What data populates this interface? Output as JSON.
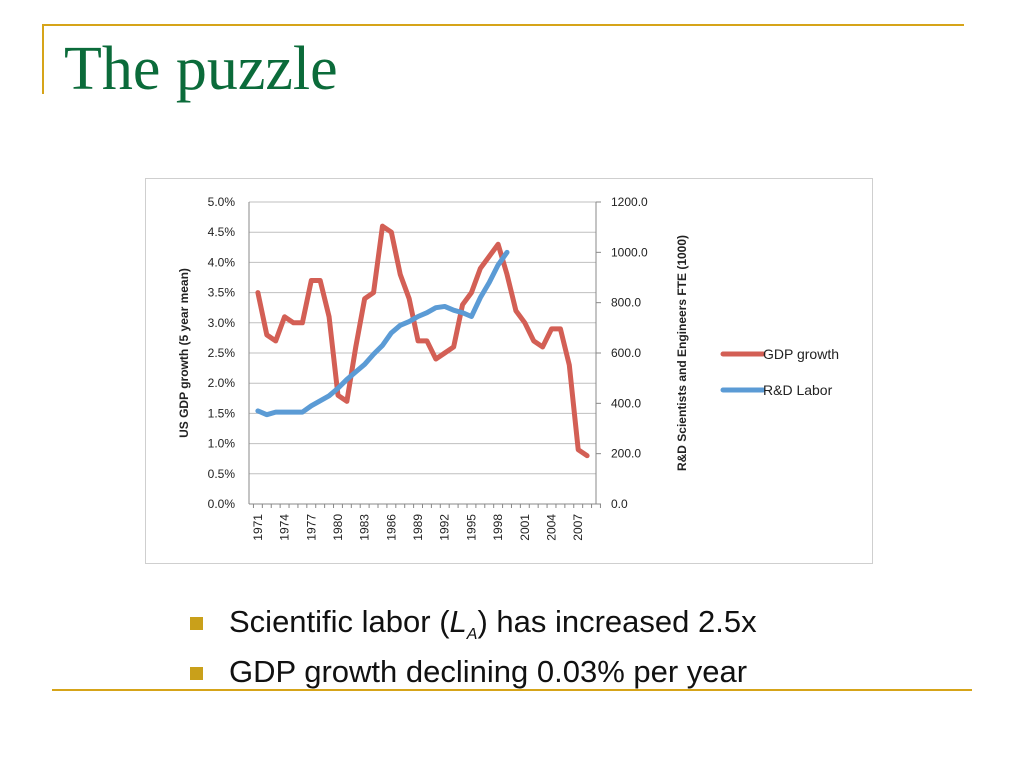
{
  "slide": {
    "title": "The puzzle",
    "bullets": [
      {
        "pre": "Scientific labor (",
        "sym": "L",
        "sub": "A",
        "post": ") has increased 2.5x"
      },
      {
        "text": "GDP growth declining 0.03% per year"
      }
    ]
  },
  "colors": {
    "accent": "#d6a419",
    "title": "#0b6b3a",
    "gdp": "#d35f55",
    "rd": "#5b9bd5",
    "grid": "#bfbfbf"
  },
  "chart_data": {
    "type": "line",
    "ylabel": "US GDP growth (5 year mean)",
    "y2label": "R&D Scientists and Engineers FTE (1000)",
    "ylim": [
      0,
      5
    ],
    "y2lim": [
      0,
      1200
    ],
    "yticks": [
      "0.0%",
      "0.5%",
      "1.0%",
      "1.5%",
      "2.0%",
      "2.5%",
      "3.0%",
      "3.5%",
      "4.0%",
      "4.5%",
      "5.0%"
    ],
    "y2ticks": [
      "0.0",
      "200.0",
      "400.0",
      "600.0",
      "800.0",
      "1000.0",
      "1200.0"
    ],
    "xticks": [
      "1971",
      "1974",
      "1977",
      "1980",
      "1983",
      "1986",
      "1989",
      "1992",
      "1995",
      "1998",
      "2001",
      "2004",
      "2007"
    ],
    "grid": true,
    "legend_position": "right",
    "series": [
      {
        "name": "GDP growth",
        "axis": "left",
        "x": [
          1971,
          1972,
          1973,
          1974,
          1975,
          1976,
          1977,
          1978,
          1979,
          1980,
          1981,
          1982,
          1983,
          1984,
          1985,
          1986,
          1987,
          1988,
          1989,
          1990,
          1991,
          1992,
          1993,
          1994,
          1995,
          1996,
          1997,
          1998,
          1999,
          2000,
          2001,
          2002,
          2003,
          2004,
          2005,
          2006,
          2007,
          2008
        ],
        "values": [
          3.5,
          2.8,
          2.7,
          3.1,
          3.0,
          3.0,
          3.7,
          3.7,
          3.1,
          1.8,
          1.7,
          2.6,
          3.4,
          3.5,
          4.6,
          4.5,
          3.8,
          3.4,
          2.7,
          2.7,
          2.4,
          2.5,
          2.6,
          3.3,
          3.5,
          3.9,
          4.1,
          4.3,
          3.8,
          3.2,
          3.0,
          2.7,
          2.6,
          2.9,
          2.9,
          2.3,
          0.9,
          0.8
        ]
      },
      {
        "name": "R&D Labor",
        "axis": "right",
        "x": [
          1971,
          1972,
          1973,
          1974,
          1975,
          1976,
          1977,
          1978,
          1979,
          1980,
          1981,
          1982,
          1983,
          1984,
          1985,
          1986,
          1987,
          1988,
          1989,
          1990,
          1991,
          1992,
          1993,
          1994,
          1995,
          1996,
          1997,
          1998,
          1999
        ],
        "values": [
          370,
          355,
          365,
          365,
          365,
          365,
          390,
          410,
          430,
          460,
          495,
          525,
          555,
          595,
          630,
          680,
          710,
          725,
          745,
          760,
          780,
          785,
          770,
          760,
          745,
          820,
          880,
          950,
          1000
        ]
      }
    ]
  }
}
